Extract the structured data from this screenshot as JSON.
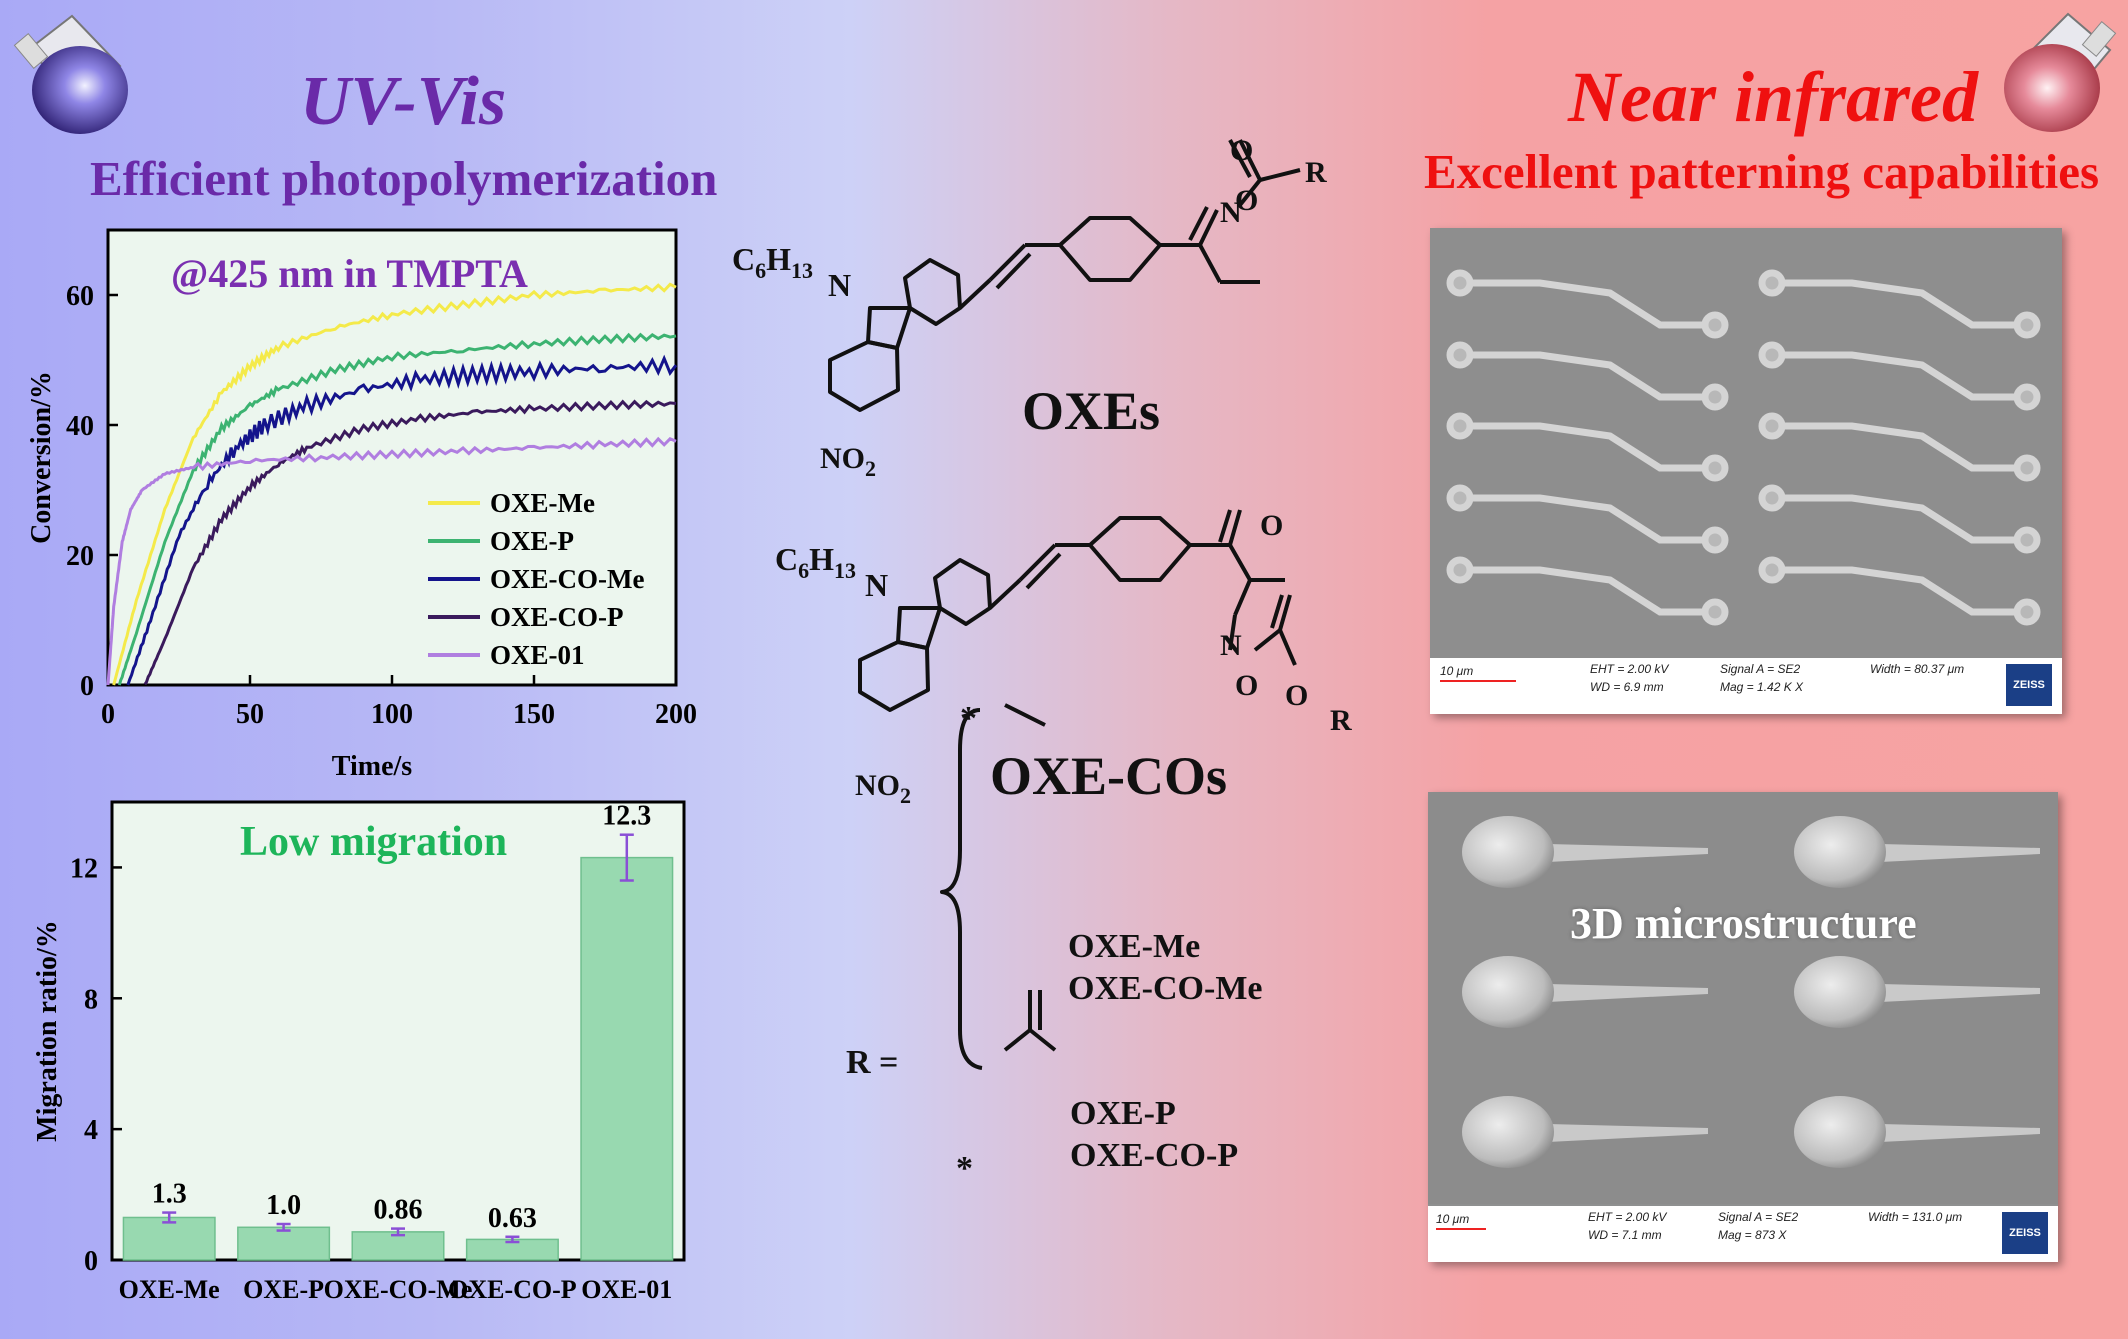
{
  "headers": {
    "left_title": "UV-Vis",
    "left_subtitle": "Efficient photopolymerization",
    "right_title": "Near infrared",
    "right_subtitle": "Excellent patterning capabilities"
  },
  "colors": {
    "left_header": "#6a2aa8",
    "right_header": "#ef1010",
    "chart_bg": "#ecf6ee",
    "bar_fill": "#98d9b0",
    "low_migration_text": "#1db55a"
  },
  "chemistry": {
    "c6h13_label": "C6H13",
    "n_label": "N",
    "no2_label": "NO2",
    "o_label": "O",
    "r_label": "R",
    "oxes_label": "OXEs",
    "oxecos_label": "OXE-COs",
    "r_equals": "R =",
    "r_group_1": [
      "OXE-Me",
      "OXE-CO-Me"
    ],
    "r_group_2": [
      "OXE-P",
      "OXE-CO-P"
    ]
  },
  "sem": {
    "top": {
      "scale": "10 μm",
      "eht": "EHT = 2.00 kV",
      "wd": "WD = 6.9 mm",
      "signal": "Signal A = SE2",
      "mag": "Mag = 1.42 K X",
      "width": "Width = 80.37 μm",
      "brand": "ZEISS"
    },
    "bottom": {
      "scale": "10 μm",
      "eht": "EHT = 2.00 kV",
      "wd": "WD = 7.1 mm",
      "signal": "Signal A = SE2",
      "mag": "Mag = 873 X",
      "width": "Width = 131.0 μm",
      "brand": "ZEISS",
      "caption": "3D microstructure"
    }
  },
  "chart_data": [
    {
      "type": "line",
      "title": "@425 nm in TMPTA",
      "xlabel": "Time/s",
      "ylabel": "Conversion/%",
      "xlim": [
        0,
        200
      ],
      "ylim": [
        0,
        70
      ],
      "xticks": [
        0,
        50,
        100,
        150,
        200
      ],
      "yticks": [
        0,
        20,
        40,
        60
      ],
      "legend": "lower-right",
      "series": [
        {
          "name": "OXE-Me",
          "color": "#f4ea4a",
          "x": [
            2,
            10,
            20,
            30,
            40,
            50,
            60,
            80,
            100,
            125,
            150,
            175,
            200
          ],
          "y": [
            0,
            13,
            27,
            38,
            45,
            49,
            52,
            55,
            57,
            58.5,
            60,
            60.7,
            61.2
          ]
        },
        {
          "name": "OXE-P",
          "color": "#3cb371",
          "x": [
            4,
            10,
            20,
            30,
            40,
            50,
            60,
            80,
            100,
            125,
            150,
            175,
            200
          ],
          "y": [
            0,
            8,
            22,
            33,
            39.5,
            43,
            45.5,
            48.5,
            50.5,
            51.5,
            52.5,
            53.2,
            53.7
          ]
        },
        {
          "name": "OXE-CO-Me",
          "color": "#14148c",
          "x": [
            7,
            15,
            25,
            35,
            45,
            55,
            70,
            90,
            110,
            130,
            150,
            175,
            200
          ],
          "y": [
            0,
            10,
            23,
            31,
            36.5,
            40,
            43,
            45.5,
            47,
            47.8,
            48.3,
            48.8,
            49.2
          ]
        },
        {
          "name": "OXE-CO-P",
          "color": "#3a1a5c",
          "x": [
            13,
            20,
            30,
            40,
            50,
            60,
            70,
            90,
            110,
            130,
            150,
            175,
            200
          ],
          "y": [
            0,
            7,
            18,
            25.5,
            30.5,
            34,
            36.5,
            39.5,
            41,
            42,
            42.5,
            43,
            43.3
          ]
        },
        {
          "name": "OXE-01",
          "color": "#b07ee0",
          "x": [
            0,
            2,
            5,
            8,
            12,
            20,
            30,
            50,
            75,
            100,
            125,
            150,
            175,
            200
          ],
          "y": [
            0,
            12,
            22,
            27,
            30,
            32.5,
            33.5,
            34.5,
            35,
            35.5,
            36,
            36.5,
            37,
            37.5
          ]
        }
      ]
    },
    {
      "type": "bar",
      "title": "Low migration",
      "xlabel": "",
      "ylabel": "Migration ratio/%",
      "ylim": [
        0,
        14
      ],
      "yticks": [
        0,
        4,
        8,
        12
      ],
      "categories": [
        "OXE-Me",
        "OXE-P",
        "OXE-CO-Me",
        "OXE-CO-P",
        "OXE-01"
      ],
      "values": [
        1.3,
        1.0,
        0.86,
        0.63,
        12.3
      ],
      "value_labels": [
        "1.3",
        "1.0",
        "0.86",
        "0.63",
        "12.3"
      ],
      "errors": [
        0.15,
        0.1,
        0.1,
        0.08,
        0.7
      ]
    }
  ]
}
